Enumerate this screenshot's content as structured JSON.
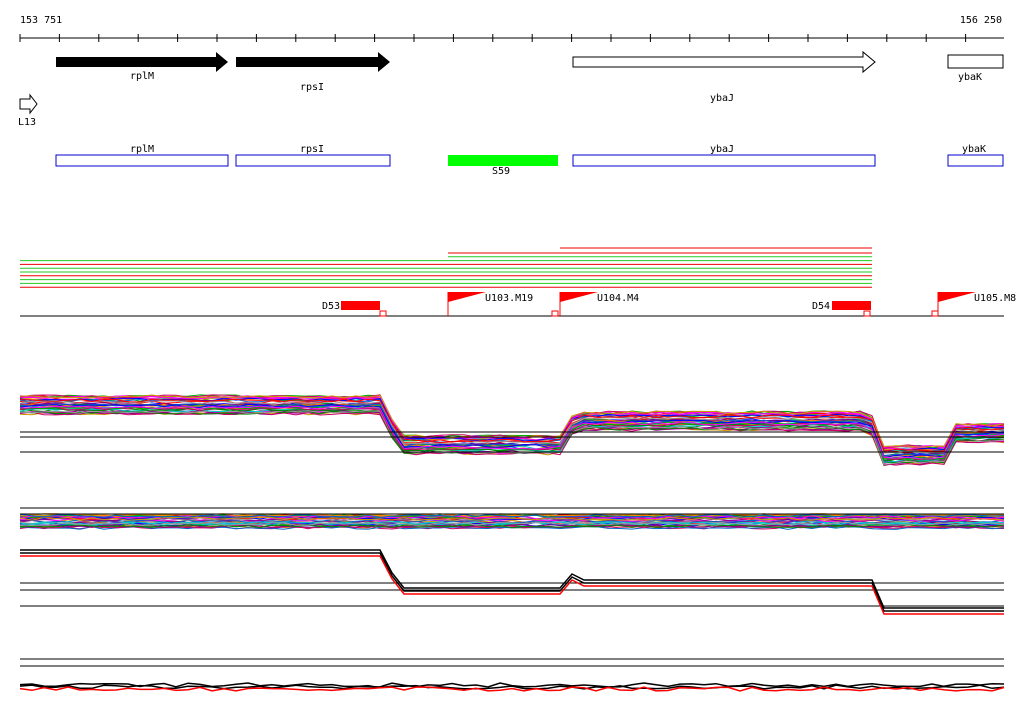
{
  "ruler": {
    "start": "153 751",
    "end": "156 250"
  },
  "genes": [
    {
      "label": "rplM"
    },
    {
      "label": "rpsI"
    },
    {
      "label": "ybaJ"
    },
    {
      "label": "ybaK"
    }
  ],
  "promoter": {
    "label": "L13"
  },
  "annotations": [
    {
      "label": "rplM"
    },
    {
      "label": "rpsI"
    },
    {
      "label": "ybaJ"
    },
    {
      "label": "ybaK"
    }
  ],
  "probe": {
    "label": "S59"
  },
  "features": [
    {
      "label": "D53"
    },
    {
      "label": "U103.M19"
    },
    {
      "label": "U104.M4"
    },
    {
      "label": "D54"
    },
    {
      "label": "U105.M8"
    }
  ]
}
